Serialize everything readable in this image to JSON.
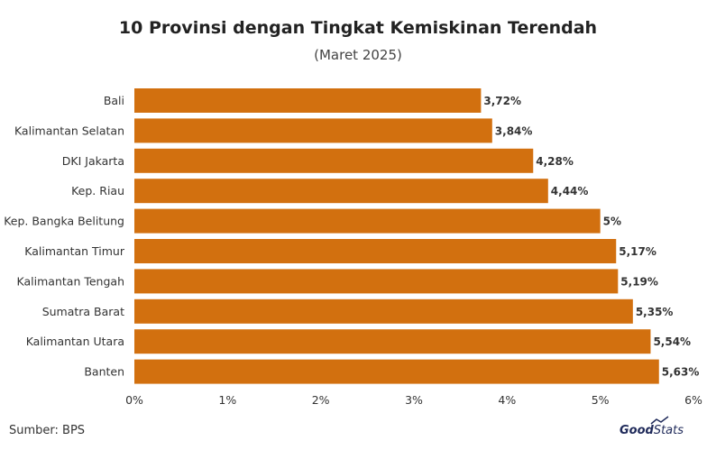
{
  "chart_data": {
    "type": "bar",
    "orientation": "horizontal",
    "title": "10 Provinsi dengan Tingkat Kemiskinan Terendah",
    "subtitle": "(Maret 2025)",
    "categories": [
      "Bali",
      "Kalimantan Selatan",
      "DKI Jakarta",
      "Kep. Riau",
      "Kep. Bangka Belitung",
      "Kalimantan Timur",
      "Kalimantan Tengah",
      "Sumatra Barat",
      "Kalimantan Utara",
      "Banten"
    ],
    "values": [
      3.72,
      3.84,
      4.28,
      4.44,
      5,
      5.17,
      5.19,
      5.35,
      5.54,
      5.63
    ],
    "value_labels": [
      "3,72%",
      "3,84%",
      "4,28%",
      "4,44%",
      "5%",
      "5,17%",
      "5,19%",
      "5,35%",
      "5,54%",
      "5,63%"
    ],
    "xlim": [
      0,
      6
    ],
    "x_ticks": [
      0,
      1,
      2,
      3,
      4,
      5,
      6
    ],
    "x_tick_labels": [
      "0%",
      "1%",
      "2%",
      "3%",
      "4%",
      "5%",
      "6%"
    ],
    "grid": false,
    "bar_color": "#d2700f"
  },
  "footer": {
    "source": "Sumber: BPS",
    "logo_good": "Good",
    "logo_stats": "Stats"
  }
}
